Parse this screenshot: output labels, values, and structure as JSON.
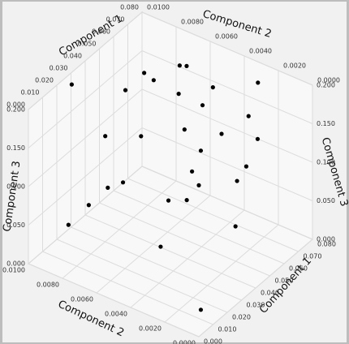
{
  "chart_data": {
    "type": "scatter3d",
    "x_label": "Component 1",
    "y_label": "Component 2",
    "z_label": "Component 3",
    "x": [
      0.0281,
      0.0599,
      0.0666,
      0.0765,
      0.0694,
      0.0587,
      0.065,
      0.0639,
      0.0728,
      0.077,
      0.0734,
      0.0679,
      0.07,
      0.063,
      0.0457,
      0.0625,
      0.0686,
      0.0622,
      0.0636,
      0.0605,
      0.0576,
      0.0414,
      0.0307,
      0.0551,
      0.0506,
      0.0125,
      0.0138,
      0.0606,
      0.0319,
      0.011
    ],
    "y": [
      0.0098,
      0.0082,
      0.0082,
      0.0075,
      0.0065,
      0.0092,
      0.0066,
      0.0045,
      0.0026,
      0.0062,
      0.0032,
      0.0065,
      0.0045,
      0.0018,
      0.0093,
      0.0086,
      0.0056,
      0.0024,
      0.0057,
      0.0028,
      0.0048,
      0.0079,
      0.0079,
      0.0053,
      0.006,
      0.0075,
      0.0088,
      0.0029,
      0.0049,
      0.0008
    ],
    "z": [
      0.19,
      0.17,
      0.15,
      0.16,
      0.18,
      0.14,
      0.15,
      0.18,
      0.19,
      0.12,
      0.14,
      0.1,
      0.11,
      0.14,
      0.1,
      0.08,
      0.08,
      0.1,
      0.06,
      0.08,
      0.06,
      0.06,
      0.07,
      0.04,
      0.04,
      0.08,
      0.04,
      0.02,
      0.02,
      0.01
    ],
    "color": "#000000",
    "xlim": [
      0,
      0.08
    ],
    "xticks": [
      {
        "value": 0,
        "label": "0.000"
      },
      {
        "value": 0.01,
        "label": "0.010"
      },
      {
        "value": 0.02,
        "label": "0.020"
      },
      {
        "value": 0.03,
        "label": "0.030"
      },
      {
        "value": 0.04,
        "label": "0.040"
      },
      {
        "value": 0.05,
        "label": "0.050"
      },
      {
        "value": 0.06,
        "label": "0.060"
      },
      {
        "value": 0.07,
        "label": "0.070"
      },
      {
        "value": 0.08,
        "label": "0.080"
      }
    ],
    "ylim": [
      0,
      0.01
    ],
    "yticks": [
      {
        "value": 0,
        "label": "0.0000"
      },
      {
        "value": 0.002,
        "label": "0.0020"
      },
      {
        "value": 0.004,
        "label": "0.0040"
      },
      {
        "value": 0.006,
        "label": "0.0060"
      },
      {
        "value": 0.008,
        "label": "0.0080"
      },
      {
        "value": 0.01,
        "label": "0.0100"
      }
    ],
    "zlim": [
      0,
      0.2
    ],
    "zticks": [
      {
        "value": 0,
        "label": "0.000"
      },
      {
        "value": 0.05,
        "label": "0.050"
      },
      {
        "value": 0.1,
        "label": "0.100"
      },
      {
        "value": 0.15,
        "label": "0.150"
      },
      {
        "value": 0.2,
        "label": "0.200"
      }
    ],
    "grid": true
  }
}
